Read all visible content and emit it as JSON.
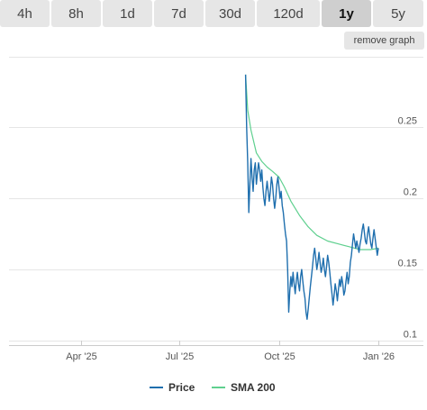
{
  "range_tabs": [
    {
      "label": "4h",
      "active": false
    },
    {
      "label": "8h",
      "active": false
    },
    {
      "label": "1d",
      "active": false
    },
    {
      "label": "7d",
      "active": false
    },
    {
      "label": "30d",
      "active": false
    },
    {
      "label": "120d",
      "active": false
    },
    {
      "label": "1y",
      "active": true
    },
    {
      "label": "5y",
      "active": false
    }
  ],
  "remove_graph_label": "remove graph",
  "legend": {
    "price_label": "Price",
    "sma_label": "SMA 200"
  },
  "colors": {
    "price": "#1f6fae",
    "sma": "#5fd08f",
    "grid": "#e6e6e6",
    "tab_bg": "#e6e6e6",
    "tab_active_bg": "#cfcfcf"
  },
  "chart_data": {
    "type": "line",
    "title": "",
    "xlabel": "",
    "ylabel": "",
    "y_axis_side": "right",
    "yticks": [
      0.1,
      0.15,
      0.2,
      0.25
    ],
    "ytick_labels": [
      "0.1",
      "0.15",
      "0.2",
      "0.25"
    ],
    "ylim": [
      0.1,
      0.285
    ],
    "xlim": [
      "2025-01-24",
      "2026-02-05"
    ],
    "xticks": [
      {
        "date": "2025-04-01",
        "label": "Apr '25"
      },
      {
        "date": "2025-07-01",
        "label": "Jul '25"
      },
      {
        "date": "2025-10-01",
        "label": "Oct '25"
      },
      {
        "date": "2026-01-01",
        "label": "Jan '26"
      }
    ],
    "grid": true,
    "legend_position": "bottom-center",
    "series": [
      {
        "name": "Price",
        "points": [
          [
            "2025-08-31",
            0.287
          ],
          [
            "2025-09-01",
            0.25
          ],
          [
            "2025-09-02",
            0.225
          ],
          [
            "2025-09-03",
            0.19
          ],
          [
            "2025-09-04",
            0.21
          ],
          [
            "2025-09-05",
            0.228
          ],
          [
            "2025-09-06",
            0.215
          ],
          [
            "2025-09-07",
            0.205
          ],
          [
            "2025-09-08",
            0.22
          ],
          [
            "2025-09-09",
            0.225
          ],
          [
            "2025-09-10",
            0.21
          ],
          [
            "2025-09-11",
            0.218
          ],
          [
            "2025-09-12",
            0.225
          ],
          [
            "2025-09-13",
            0.22
          ],
          [
            "2025-09-14",
            0.212
          ],
          [
            "2025-09-15",
            0.22
          ],
          [
            "2025-09-16",
            0.208
          ],
          [
            "2025-09-17",
            0.2
          ],
          [
            "2025-09-18",
            0.195
          ],
          [
            "2025-09-19",
            0.205
          ],
          [
            "2025-09-20",
            0.212
          ],
          [
            "2025-09-21",
            0.205
          ],
          [
            "2025-09-22",
            0.198
          ],
          [
            "2025-09-23",
            0.205
          ],
          [
            "2025-09-24",
            0.215
          ],
          [
            "2025-09-25",
            0.21
          ],
          [
            "2025-09-26",
            0.2
          ],
          [
            "2025-09-27",
            0.193
          ],
          [
            "2025-09-28",
            0.2
          ],
          [
            "2025-09-29",
            0.21
          ],
          [
            "2025-09-30",
            0.215
          ],
          [
            "2025-10-01",
            0.208
          ],
          [
            "2025-10-02",
            0.2
          ],
          [
            "2025-10-03",
            0.205
          ],
          [
            "2025-10-04",
            0.195
          ],
          [
            "2025-10-05",
            0.19
          ],
          [
            "2025-10-06",
            0.182
          ],
          [
            "2025-10-07",
            0.175
          ],
          [
            "2025-10-08",
            0.17
          ],
          [
            "2025-10-09",
            0.15
          ],
          [
            "2025-10-10",
            0.12
          ],
          [
            "2025-10-11",
            0.135
          ],
          [
            "2025-10-12",
            0.145
          ],
          [
            "2025-10-13",
            0.138
          ],
          [
            "2025-10-14",
            0.148
          ],
          [
            "2025-10-15",
            0.14
          ],
          [
            "2025-10-16",
            0.133
          ],
          [
            "2025-10-17",
            0.142
          ],
          [
            "2025-10-18",
            0.148
          ],
          [
            "2025-10-19",
            0.14
          ],
          [
            "2025-10-20",
            0.135
          ],
          [
            "2025-10-21",
            0.145
          ],
          [
            "2025-10-22",
            0.15
          ],
          [
            "2025-10-23",
            0.142
          ],
          [
            "2025-10-24",
            0.135
          ],
          [
            "2025-10-25",
            0.13
          ],
          [
            "2025-10-26",
            0.12
          ],
          [
            "2025-10-27",
            0.115
          ],
          [
            "2025-10-28",
            0.122
          ],
          [
            "2025-10-29",
            0.13
          ],
          [
            "2025-10-30",
            0.138
          ],
          [
            "2025-10-31",
            0.145
          ],
          [
            "2025-11-01",
            0.152
          ],
          [
            "2025-11-02",
            0.16
          ],
          [
            "2025-11-03",
            0.165
          ],
          [
            "2025-11-04",
            0.158
          ],
          [
            "2025-11-05",
            0.15
          ],
          [
            "2025-11-06",
            0.155
          ],
          [
            "2025-11-07",
            0.162
          ],
          [
            "2025-11-08",
            0.155
          ],
          [
            "2025-11-09",
            0.148
          ],
          [
            "2025-11-10",
            0.152
          ],
          [
            "2025-11-11",
            0.158
          ],
          [
            "2025-11-12",
            0.15
          ],
          [
            "2025-11-13",
            0.145
          ],
          [
            "2025-11-14",
            0.152
          ],
          [
            "2025-11-15",
            0.16
          ],
          [
            "2025-11-16",
            0.155
          ],
          [
            "2025-11-17",
            0.148
          ],
          [
            "2025-11-18",
            0.14
          ],
          [
            "2025-11-19",
            0.133
          ],
          [
            "2025-11-20",
            0.125
          ],
          [
            "2025-11-21",
            0.132
          ],
          [
            "2025-11-22",
            0.14
          ],
          [
            "2025-11-23",
            0.135
          ],
          [
            "2025-11-24",
            0.128
          ],
          [
            "2025-11-25",
            0.136
          ],
          [
            "2025-11-26",
            0.143
          ],
          [
            "2025-11-27",
            0.138
          ],
          [
            "2025-11-28",
            0.145
          ],
          [
            "2025-11-29",
            0.14
          ],
          [
            "2025-11-30",
            0.132
          ],
          [
            "2025-12-01",
            0.135
          ],
          [
            "2025-12-02",
            0.142
          ],
          [
            "2025-12-03",
            0.148
          ],
          [
            "2025-12-04",
            0.14
          ],
          [
            "2025-12-05",
            0.145
          ],
          [
            "2025-12-06",
            0.155
          ],
          [
            "2025-12-07",
            0.16
          ],
          [
            "2025-12-08",
            0.168
          ],
          [
            "2025-12-09",
            0.175
          ],
          [
            "2025-12-10",
            0.17
          ],
          [
            "2025-12-11",
            0.165
          ],
          [
            "2025-12-12",
            0.17
          ],
          [
            "2025-12-13",
            0.166
          ],
          [
            "2025-12-14",
            0.162
          ],
          [
            "2025-12-15",
            0.168
          ],
          [
            "2025-12-16",
            0.172
          ],
          [
            "2025-12-17",
            0.178
          ],
          [
            "2025-12-18",
            0.182
          ],
          [
            "2025-12-19",
            0.176
          ],
          [
            "2025-12-20",
            0.17
          ],
          [
            "2025-12-21",
            0.168
          ],
          [
            "2025-12-22",
            0.175
          ],
          [
            "2025-12-23",
            0.18
          ],
          [
            "2025-12-24",
            0.174
          ],
          [
            "2025-12-25",
            0.168
          ],
          [
            "2025-12-26",
            0.165
          ],
          [
            "2025-12-27",
            0.172
          ],
          [
            "2025-12-28",
            0.178
          ],
          [
            "2025-12-29",
            0.172
          ],
          [
            "2025-12-30",
            0.166
          ],
          [
            "2025-12-31",
            0.16
          ],
          [
            "2026-01-01",
            0.165
          ]
        ]
      },
      {
        "name": "SMA 200",
        "points": [
          [
            "2025-08-31",
            0.287
          ],
          [
            "2025-09-02",
            0.262
          ],
          [
            "2025-09-05",
            0.248
          ],
          [
            "2025-09-10",
            0.232
          ],
          [
            "2025-09-15",
            0.226
          ],
          [
            "2025-09-20",
            0.222
          ],
          [
            "2025-09-25",
            0.219
          ],
          [
            "2025-10-01",
            0.215
          ],
          [
            "2025-10-06",
            0.208
          ],
          [
            "2025-10-12",
            0.198
          ],
          [
            "2025-10-20",
            0.188
          ],
          [
            "2025-10-28",
            0.18
          ],
          [
            "2025-11-05",
            0.174
          ],
          [
            "2025-11-15",
            0.17
          ],
          [
            "2025-11-25",
            0.168
          ],
          [
            "2025-12-05",
            0.166
          ],
          [
            "2025-12-15",
            0.164
          ],
          [
            "2025-12-25",
            0.164
          ],
          [
            "2026-01-01",
            0.165
          ]
        ]
      }
    ]
  }
}
